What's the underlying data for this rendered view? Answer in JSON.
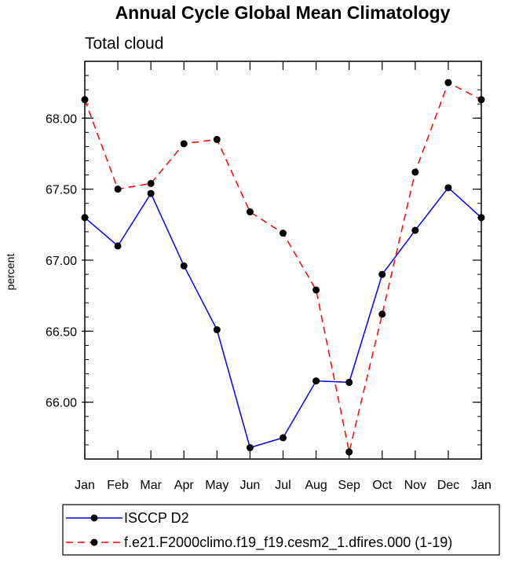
{
  "chart_data": {
    "type": "line",
    "title": "Annual Cycle Global Mean Climatology",
    "subtitle": "Total cloud",
    "ylabel": "percent",
    "xlabel": "",
    "categories": [
      "Jan",
      "Feb",
      "Mar",
      "Apr",
      "May",
      "Jun",
      "Jul",
      "Aug",
      "Sep",
      "Oct",
      "Nov",
      "Dec",
      "Jan"
    ],
    "ylim": [
      65.6,
      68.4
    ],
    "yticks": [
      66.0,
      66.5,
      67.0,
      67.5,
      68.0
    ],
    "ytick_labels": [
      "66.00",
      "66.50",
      "67.00",
      "67.50",
      "68.00"
    ],
    "yminor_step": 0.1,
    "grid": false,
    "legend_position": "bottom",
    "series": [
      {
        "name": "ISCCP D2",
        "color": "#0000ff",
        "dash": "solid",
        "values": [
          67.3,
          67.1,
          67.47,
          66.96,
          66.51,
          65.68,
          65.75,
          66.15,
          66.14,
          66.9,
          67.21,
          67.51,
          67.3
        ]
      },
      {
        "name": "f.e21.F2000climo.f19_f19.cesm2_1.dfires.000 (1-19)",
        "color": "#ff0000",
        "dash": "dashed",
        "values": [
          68.13,
          67.5,
          67.54,
          67.82,
          67.85,
          67.34,
          67.19,
          66.79,
          65.65,
          66.62,
          67.62,
          68.25,
          68.13
        ]
      }
    ]
  }
}
